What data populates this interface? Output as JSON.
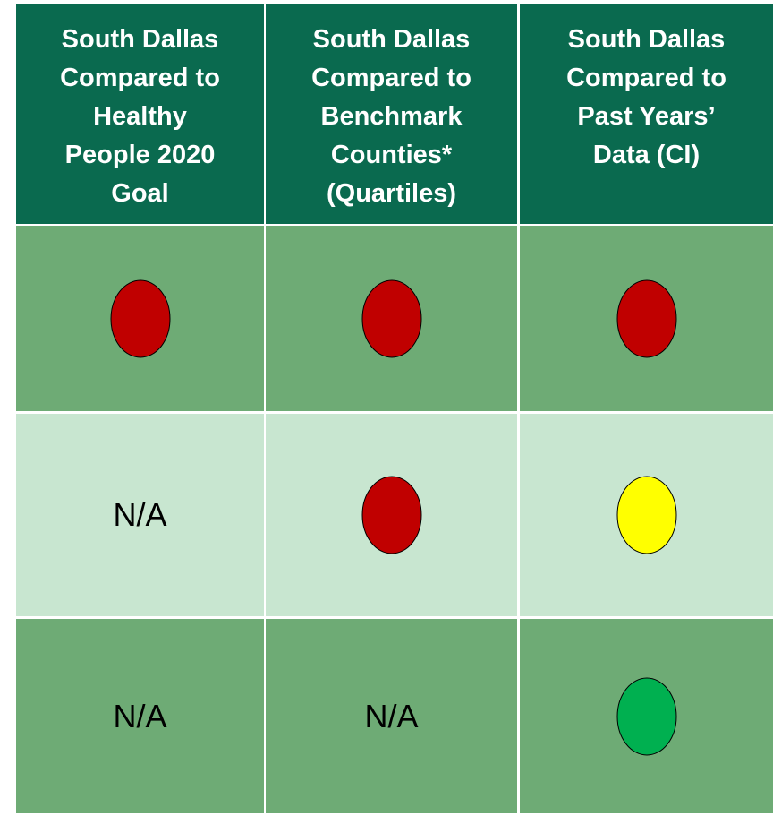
{
  "table": {
    "header": [
      [
        "South Dallas",
        "Compared to",
        "Healthy",
        "People 2020",
        "Goal"
      ],
      [
        "South Dallas",
        "Compared to",
        "Benchmark",
        "Counties*",
        "(Quartiles)"
      ],
      [
        "South Dallas",
        "Compared to",
        "Past Years’",
        "Data (CI)"
      ]
    ],
    "rows": [
      [
        {
          "color": "#c00000"
        },
        {
          "color": "#c00000"
        },
        {
          "color": "#c00000"
        }
      ],
      [
        {
          "text": "N/A"
        },
        {
          "color": "#c00000"
        },
        {
          "color": "#ffff00"
        }
      ],
      [
        {
          "text": "N/A"
        },
        {
          "text": "N/A"
        },
        {
          "color": "#00b050"
        }
      ]
    ]
  }
}
